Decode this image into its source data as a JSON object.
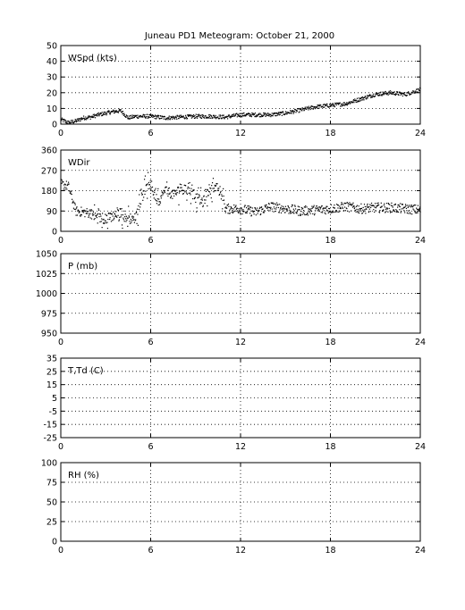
{
  "title": "Juneau PD1 Meteogram:    October 21, 2000",
  "chart_data": [
    {
      "type": "scatter",
      "label": "WSpd (kts)",
      "ylim": [
        0,
        50
      ],
      "yticks": [
        "0",
        "10",
        "20",
        "30",
        "40",
        "50"
      ],
      "xlim": [
        0,
        24
      ],
      "xticks": [
        "0",
        "6",
        "12",
        "18",
        "24"
      ],
      "grid": true,
      "trend": [
        [
          0,
          3
        ],
        [
          0.5,
          1
        ],
        [
          1,
          2
        ],
        [
          1.5,
          4
        ],
        [
          2,
          4.5
        ],
        [
          2.5,
          6
        ],
        [
          3,
          7
        ],
        [
          3.5,
          8
        ],
        [
          4,
          8.5
        ],
        [
          4.5,
          4
        ],
        [
          5,
          5
        ],
        [
          6,
          5
        ],
        [
          7,
          4
        ],
        [
          8,
          4.5
        ],
        [
          9,
          5
        ],
        [
          10,
          5
        ],
        [
          11,
          4.5
        ],
        [
          12,
          6
        ],
        [
          13,
          6
        ],
        [
          14,
          6
        ],
        [
          15,
          7
        ],
        [
          16,
          9
        ],
        [
          17,
          11
        ],
        [
          18,
          12
        ],
        [
          19,
          13
        ],
        [
          20,
          16
        ],
        [
          21,
          19
        ],
        [
          22,
          20
        ],
        [
          23,
          19
        ],
        [
          24,
          22
        ]
      ]
    },
    {
      "type": "scatter",
      "label": "WDir",
      "ylim": [
        0,
        360
      ],
      "yticks": [
        "0",
        "90",
        "180",
        "270",
        "360"
      ],
      "xlim": [
        0,
        24
      ],
      "xticks": [
        "0",
        "6",
        "12",
        "18",
        "24"
      ],
      "grid": true,
      "trend": [
        [
          0,
          210
        ],
        [
          0.5,
          200
        ],
        [
          1,
          90
        ],
        [
          1.5,
          85
        ],
        [
          2,
          80
        ],
        [
          2.5,
          60
        ],
        [
          3,
          55
        ],
        [
          3.5,
          70
        ],
        [
          4,
          85
        ],
        [
          4.5,
          55
        ],
        [
          5,
          60
        ],
        [
          5.5,
          180
        ],
        [
          6,
          200
        ],
        [
          6.5,
          130
        ],
        [
          7,
          185
        ],
        [
          7.5,
          160
        ],
        [
          8,
          190
        ],
        [
          8.5,
          180
        ],
        [
          9,
          150
        ],
        [
          9.5,
          130
        ],
        [
          10,
          200
        ],
        [
          10.5,
          190
        ],
        [
          11,
          100
        ],
        [
          12,
          100
        ],
        [
          13,
          85
        ],
        [
          14,
          110
        ],
        [
          15,
          100
        ],
        [
          16,
          90
        ],
        [
          17,
          95
        ],
        [
          18,
          100
        ],
        [
          19,
          110
        ],
        [
          20,
          100
        ],
        [
          21,
          105
        ],
        [
          22,
          105
        ],
        [
          23,
          100
        ],
        [
          24,
          95
        ]
      ]
    },
    {
      "type": "scatter",
      "label": "P (mb)",
      "ylim": [
        950,
        1050
      ],
      "yticks": [
        "950",
        "975",
        "1000",
        "1025",
        "1050"
      ],
      "xlim": [
        0,
        24
      ],
      "xticks": [
        "0",
        "6",
        "12",
        "18",
        "24"
      ],
      "grid": true
    },
    {
      "type": "scatter",
      "label": "T,Td (C)",
      "ylim": [
        -25,
        35
      ],
      "yticks": [
        "-25",
        "-15",
        "-5",
        "5",
        "15",
        "25",
        "35"
      ],
      "xlim": [
        0,
        24
      ],
      "xticks": [
        "0",
        "6",
        "12",
        "18",
        "24"
      ],
      "grid": true
    },
    {
      "type": "scatter",
      "label": "RH (%)",
      "ylim": [
        0,
        100
      ],
      "yticks": [
        "0",
        "25",
        "50",
        "75",
        "100"
      ],
      "xlim": [
        0,
        24
      ],
      "xticks": [
        "0",
        "6",
        "12",
        "18",
        "24"
      ],
      "grid": true
    }
  ]
}
